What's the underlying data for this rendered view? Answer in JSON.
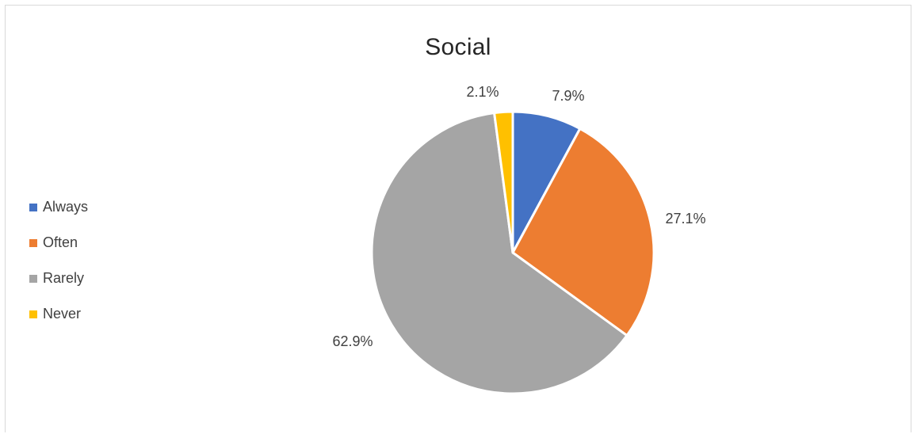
{
  "chart_data": {
    "type": "pie",
    "title": "Social",
    "categories": [
      "Always",
      "Often",
      "Rarely",
      "Never"
    ],
    "values": [
      7.9,
      27.1,
      62.9,
      2.1
    ],
    "labels": [
      "7.9%",
      "27.1%",
      "62.9%",
      "2.1%"
    ],
    "colors": [
      "#4472C4",
      "#ED7D31",
      "#A5A5A5",
      "#FFC000"
    ],
    "legend_position": "left",
    "start_angle": "12 o'clock, clockwise"
  }
}
